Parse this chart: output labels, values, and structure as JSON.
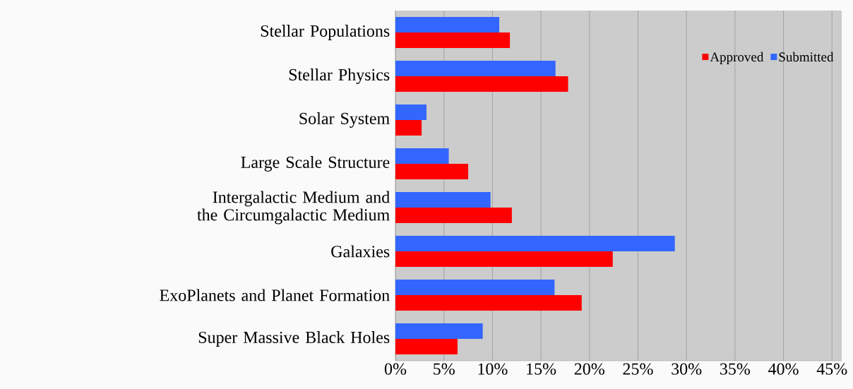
{
  "chart_data": {
    "type": "bar",
    "orientation": "horizontal",
    "categories": [
      "Stellar Populations",
      "Stellar Physics",
      "Solar System",
      "Large Scale Structure",
      "Intergalactic Medium and the Circumgalactic Medium",
      "Galaxies",
      "ExoPlanets and Planet Formation",
      "Super Massive Black Holes"
    ],
    "series": [
      {
        "name": "Approved",
        "color": "#ff0000",
        "values": [
          11.8,
          17.8,
          2.7,
          7.5,
          12.0,
          22.4,
          19.2,
          6.4
        ]
      },
      {
        "name": "Submitted",
        "color": "#3366ff",
        "values": [
          10.7,
          16.5,
          3.2,
          5.5,
          9.8,
          28.8,
          16.4,
          9.0
        ]
      }
    ],
    "xlim": [
      0,
      46
    ],
    "xticks": [
      {
        "value": 0,
        "label": "0%"
      },
      {
        "value": 5,
        "label": "5%"
      },
      {
        "value": 10,
        "label": "10%"
      },
      {
        "value": 15,
        "label": "15%"
      },
      {
        "value": 20,
        "label": "20%"
      },
      {
        "value": 25,
        "label": "25%"
      },
      {
        "value": 30,
        "label": "30%"
      },
      {
        "value": 35,
        "label": "35%"
      },
      {
        "value": 40,
        "label": "40%"
      },
      {
        "value": 45,
        "label": "45%"
      }
    ],
    "grid": "x",
    "legend": "top right"
  }
}
